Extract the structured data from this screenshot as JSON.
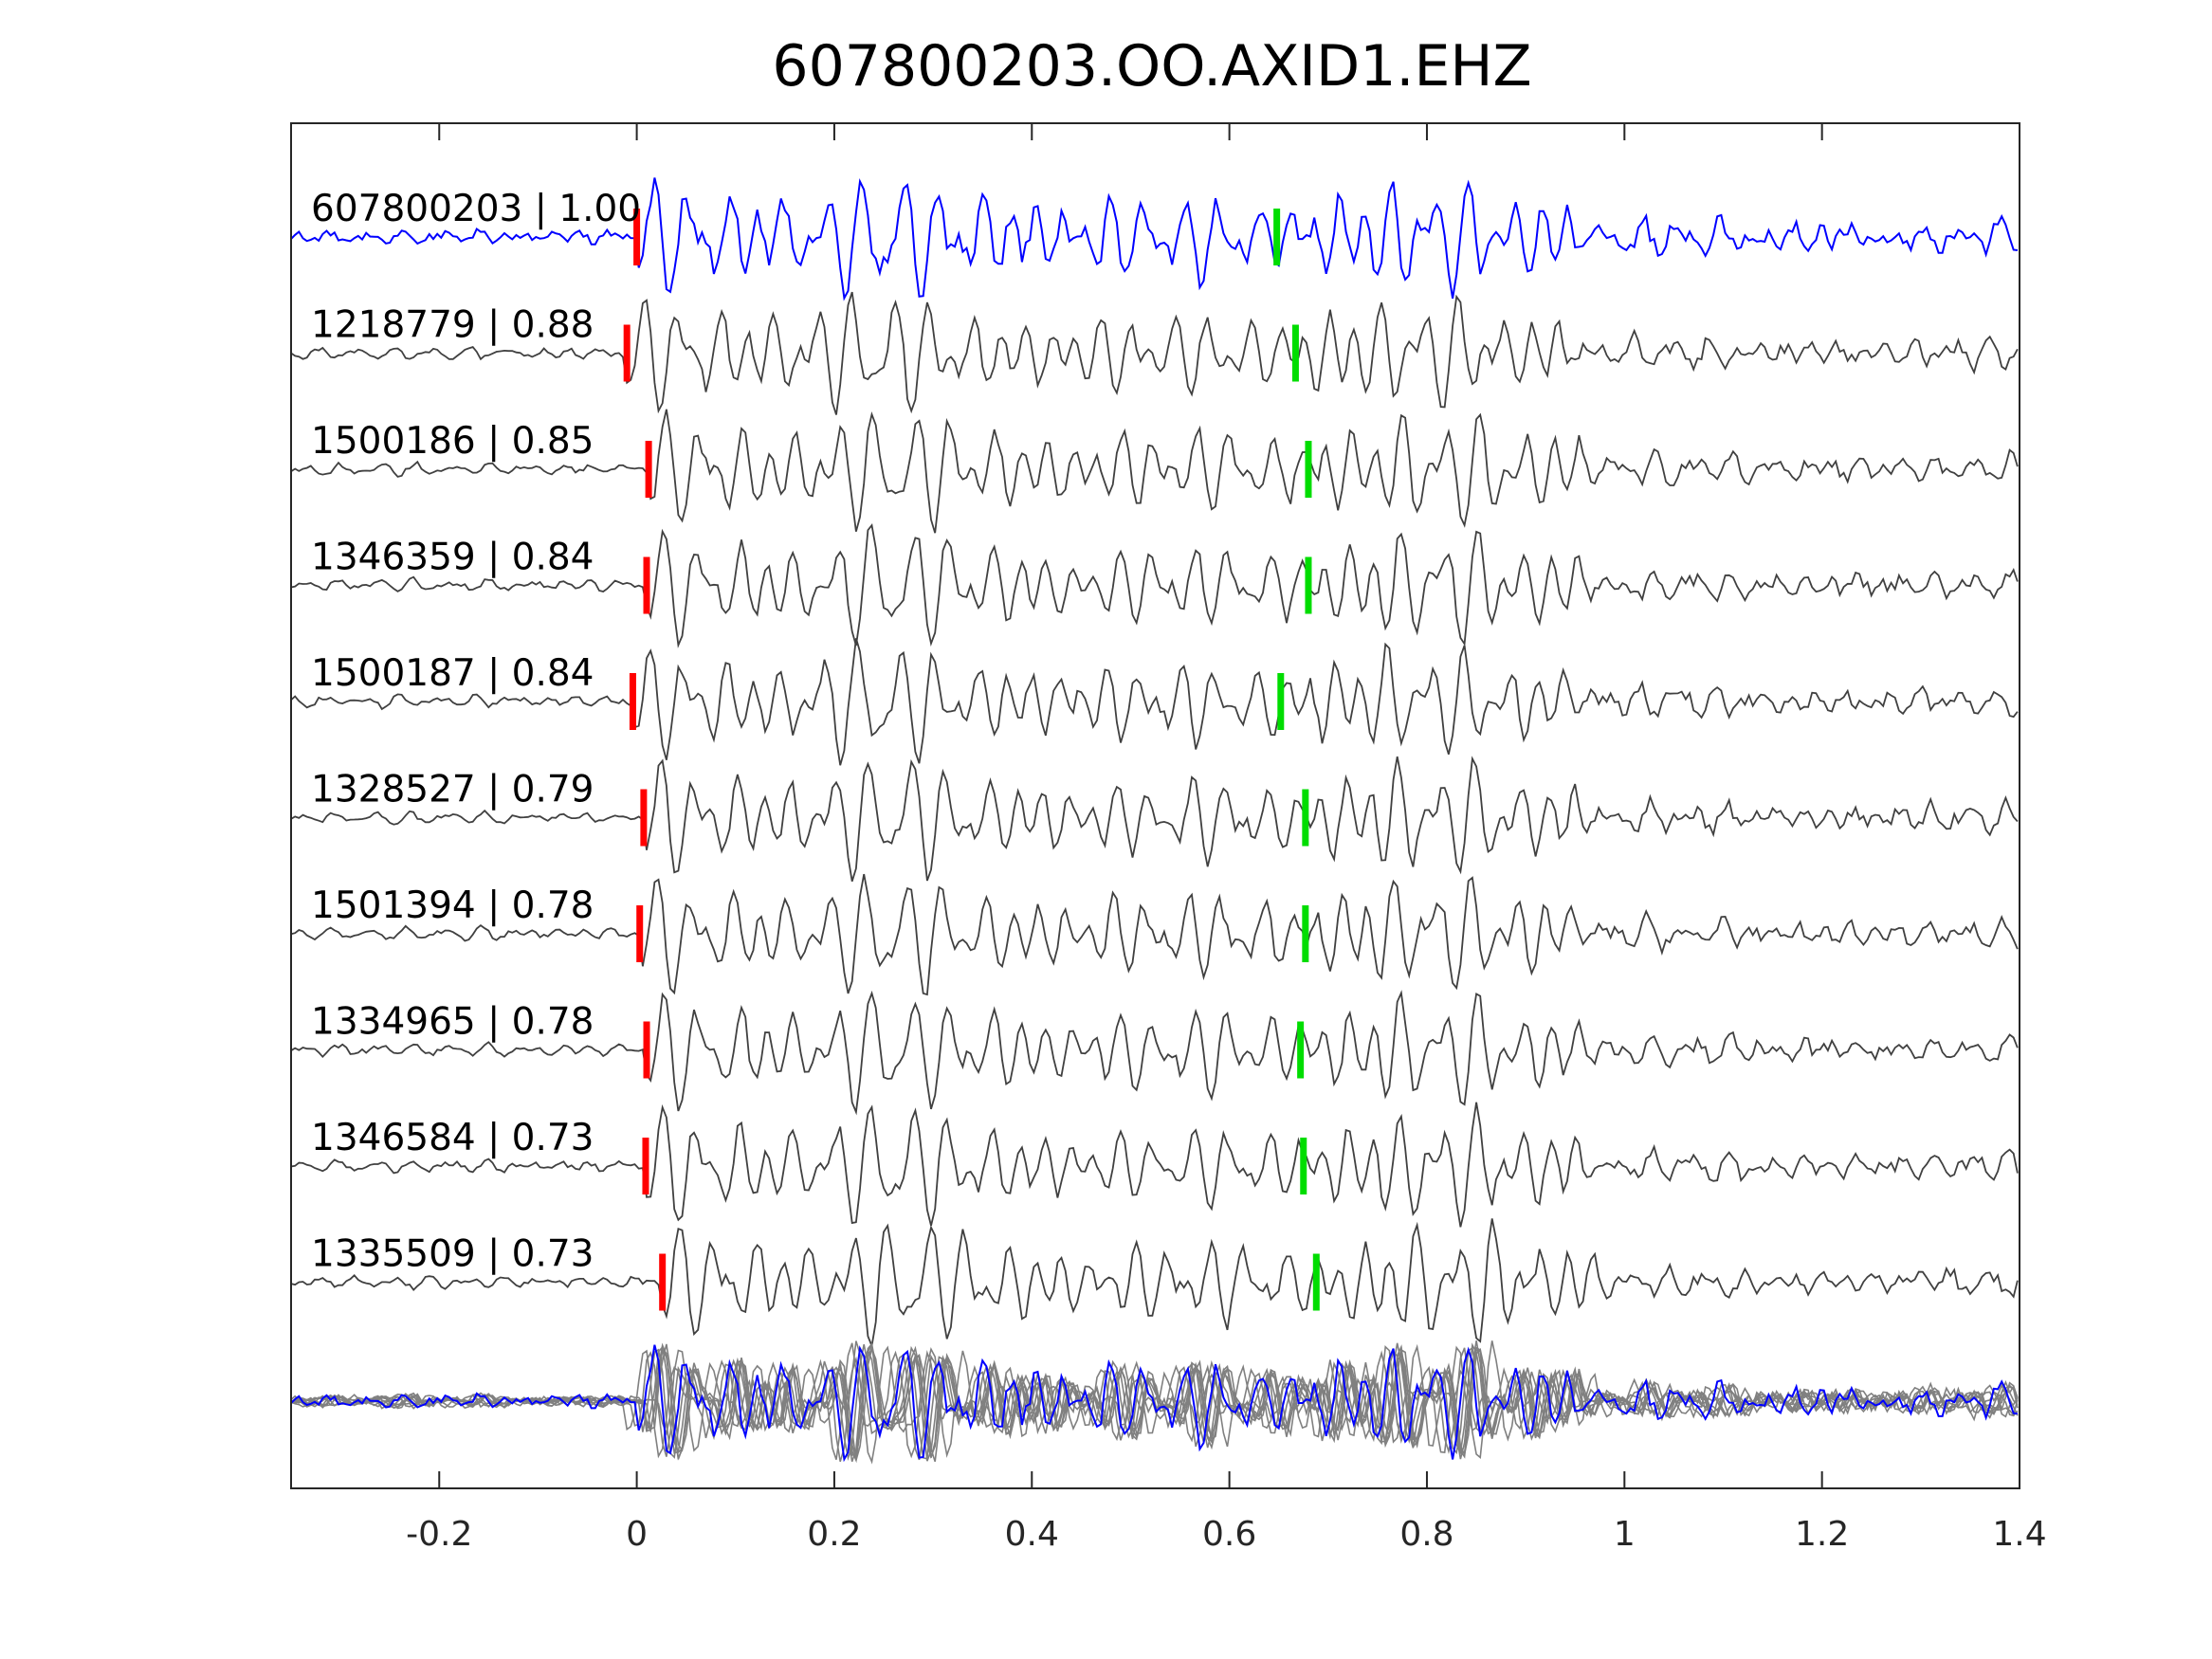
{
  "chart_data": {
    "type": "line",
    "title": "607800203.OO.AXID1.EHZ",
    "xlabel": "",
    "ylabel": "",
    "xlim": [
      -0.35,
      1.4
    ],
    "xticks": [
      -0.2,
      0,
      0.2,
      0.4,
      0.6,
      0.8,
      1,
      1.2,
      1.4
    ],
    "xtick_labels": [
      "-0.2",
      "0",
      "0.2",
      "0.4",
      "0.6",
      "0.8",
      "1",
      "1.2",
      "1.4"
    ],
    "grid": false,
    "colors": {
      "template": "#0000ff",
      "trace": "#404040",
      "stack": "#808080",
      "p_pick": "#ff0000",
      "s_pick": "#00dd00"
    },
    "series": [
      {
        "name": "607800203",
        "cc": "1.00",
        "label": "607800203 | 1.00",
        "p_pick": 0.0,
        "s_pick": 0.648,
        "template": true
      },
      {
        "name": "1218779",
        "cc": "0.88",
        "label": "1218779 | 0.88",
        "p_pick": -0.01,
        "s_pick": 0.667
      },
      {
        "name": "1500186",
        "cc": "0.85",
        "label": "1500186 | 0.85",
        "p_pick": 0.012,
        "s_pick": 0.68
      },
      {
        "name": "1346359",
        "cc": "0.84",
        "label": "1346359 | 0.84",
        "p_pick": 0.01,
        "s_pick": 0.68
      },
      {
        "name": "1500187",
        "cc": "0.84",
        "label": "1500187 | 0.84",
        "p_pick": -0.004,
        "s_pick": 0.652
      },
      {
        "name": "1328527",
        "cc": "0.79",
        "label": "1328527 | 0.79",
        "p_pick": 0.007,
        "s_pick": 0.677
      },
      {
        "name": "1501394",
        "cc": "0.78",
        "label": "1501394 | 0.78",
        "p_pick": 0.003,
        "s_pick": 0.677
      },
      {
        "name": "1334965",
        "cc": "0.78",
        "label": "1334965 | 0.78",
        "p_pick": 0.01,
        "s_pick": 0.672
      },
      {
        "name": "1346584",
        "cc": "0.73",
        "label": "1346584 | 0.73",
        "p_pick": 0.009,
        "s_pick": 0.675
      },
      {
        "name": "1335509",
        "cc": "0.73",
        "label": "1335509 | 0.73",
        "p_pick": 0.026,
        "s_pick": 0.688
      }
    ]
  }
}
